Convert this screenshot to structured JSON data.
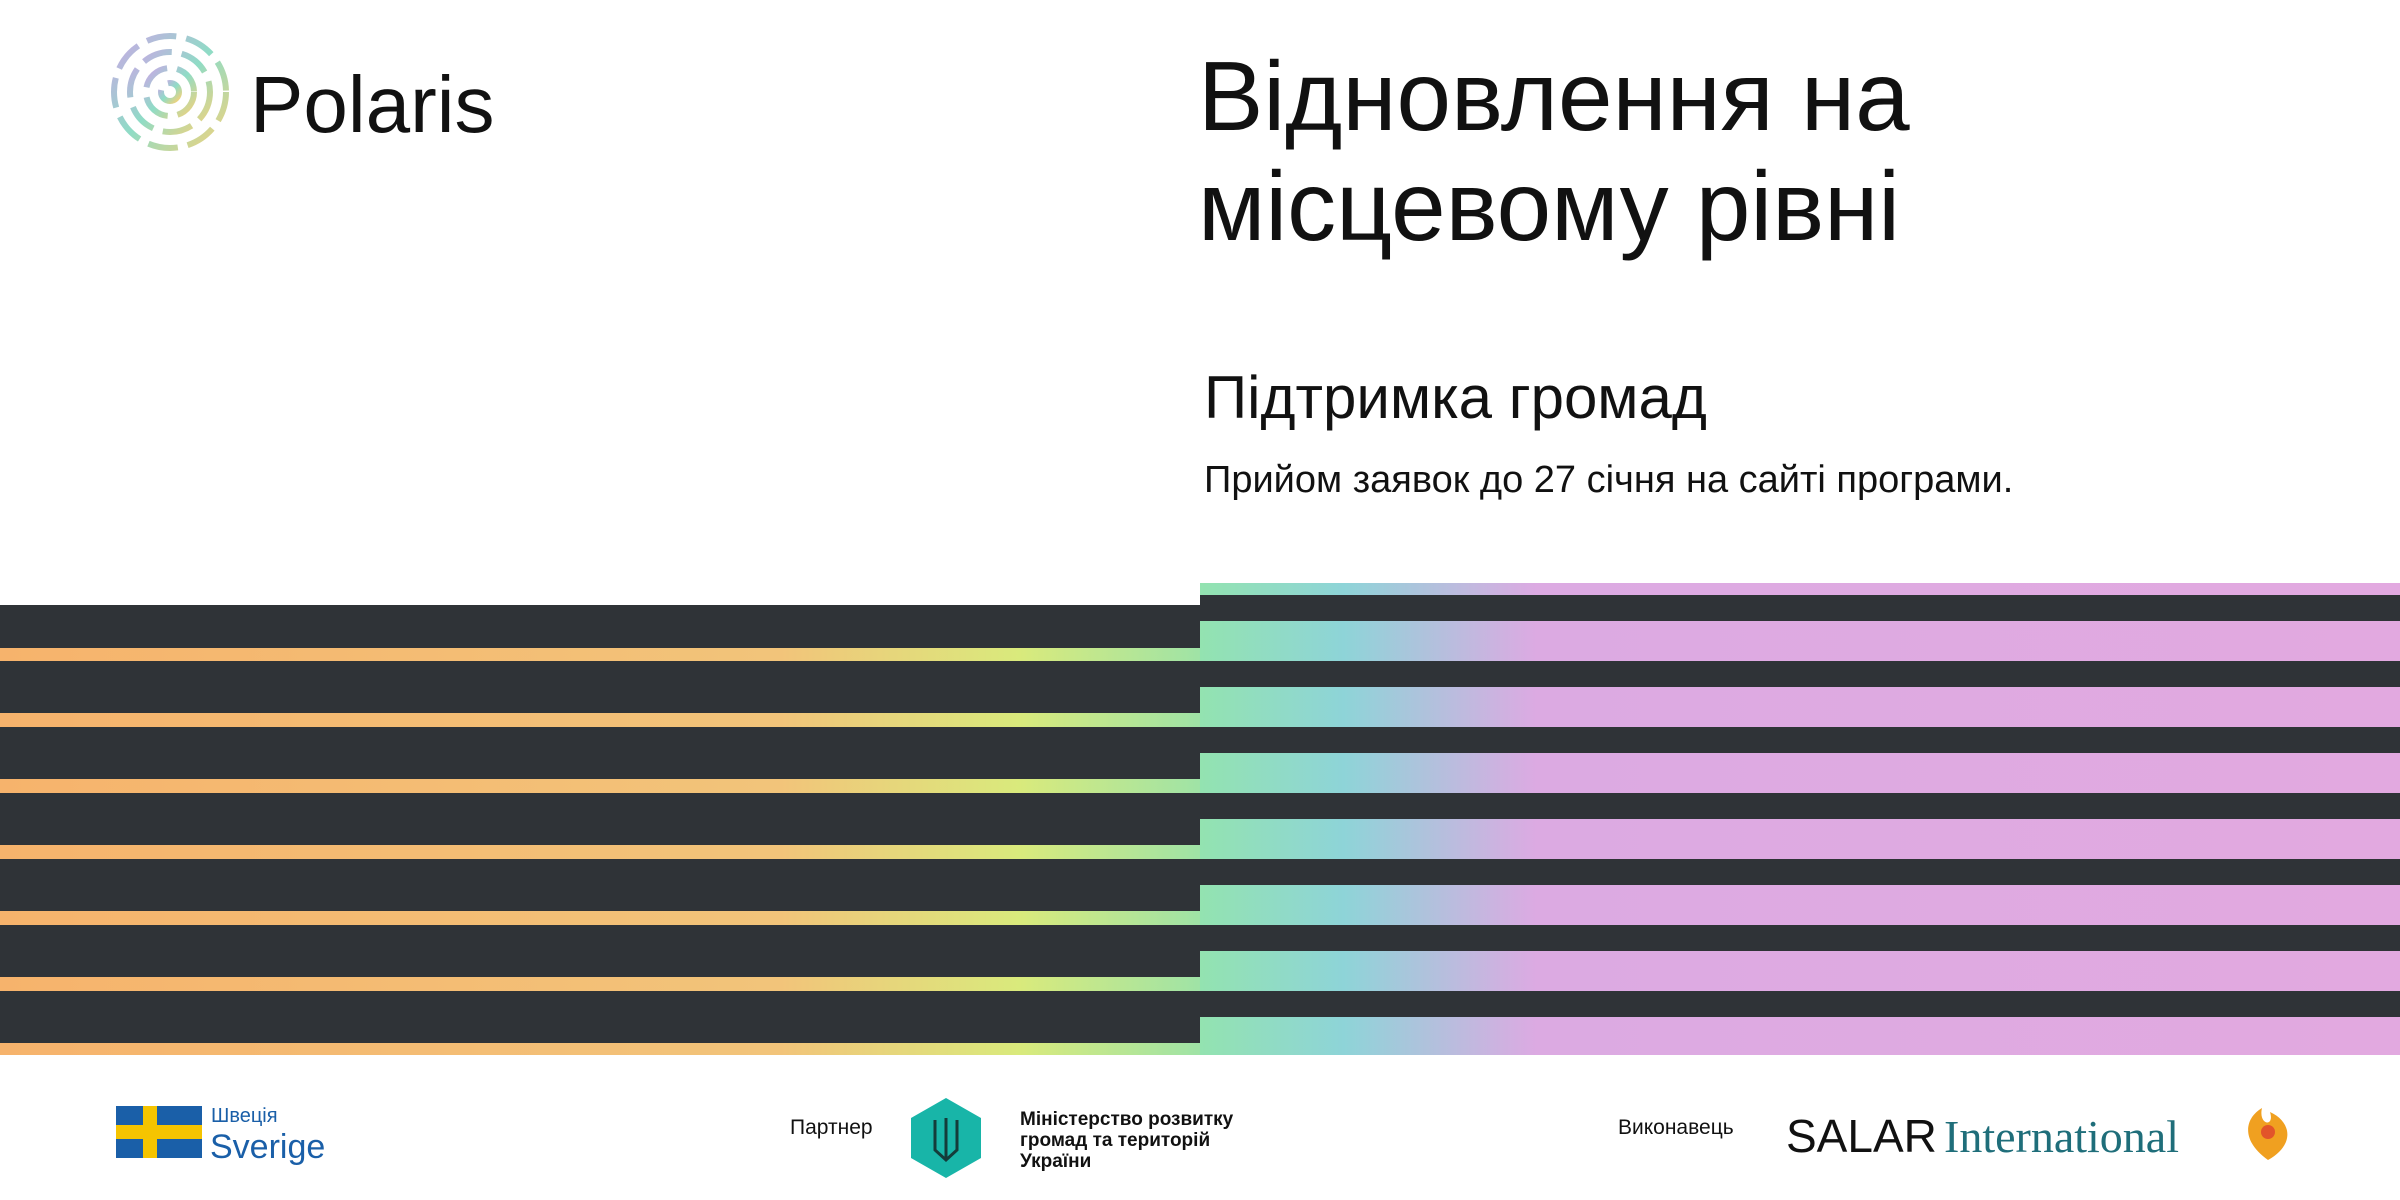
{
  "header": {
    "logo": "Polaris",
    "title_lines": [
      "Відновлення на",
      "місцевому рівні"
    ]
  },
  "content": {
    "subtitle": "Підтримка громад",
    "text": "Прийом заявок до 27 січня на сайті програми."
  },
  "footer": {
    "sweden": {
      "small": "Швеція",
      "large": "Sverige"
    },
    "partner": {
      "label": "Партнер",
      "lines": [
        "Міністерство розвитку",
        "громад та територій",
        "України"
      ]
    },
    "executor": {
      "label": "Виконавець",
      "salar": "SALAR",
      "international": "International"
    }
  }
}
